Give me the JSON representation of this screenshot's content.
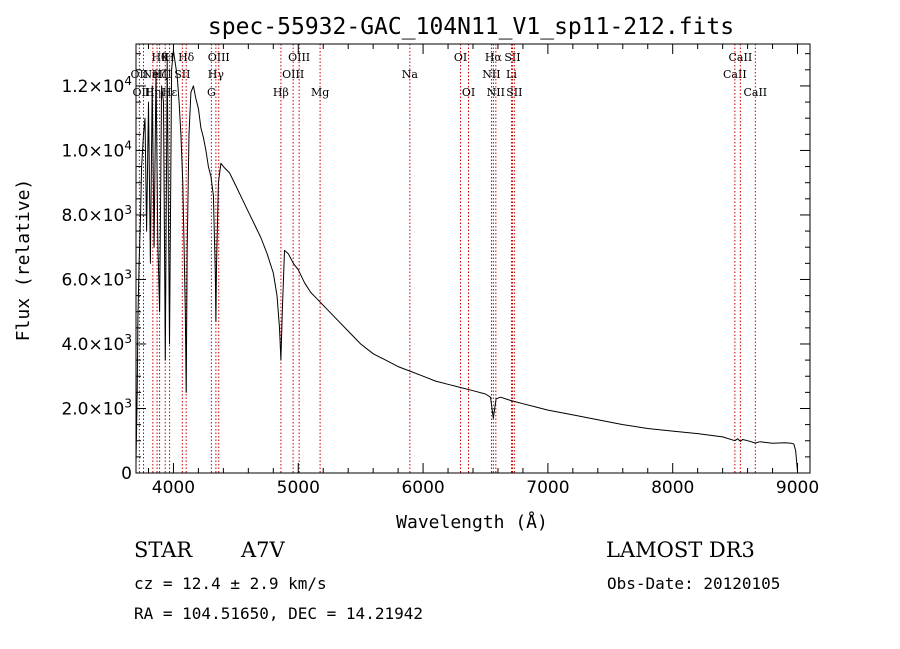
{
  "chart_data": {
    "type": "line",
    "title": "spec-55932-GAC_104N11_V1_sp11-212.fits",
    "xlabel": "Wavelength (Å)",
    "ylabel": "Flux (relative)",
    "xlim": [
      3700,
      9100
    ],
    "ylim": [
      0,
      13300
    ],
    "x_ticks": [
      4000,
      5000,
      6000,
      7000,
      8000,
      9000
    ],
    "x_tick_labels": [
      "4000",
      "5000",
      "6000",
      "7000",
      "8000",
      "9000"
    ],
    "y_ticks": [
      0,
      2000,
      4000,
      6000,
      8000,
      10000,
      12000
    ],
    "y_tick_labels": [
      {
        "mant": "0",
        "exp": ""
      },
      {
        "mant": "2.0×10",
        "exp": "3"
      },
      {
        "mant": "4.0×10",
        "exp": "3"
      },
      {
        "mant": "6.0×10",
        "exp": "3"
      },
      {
        "mant": "8.0×10",
        "exp": "3"
      },
      {
        "mant": "1.0×10",
        "exp": "4"
      },
      {
        "mant": "1.2×10",
        "exp": "4"
      }
    ],
    "series": [
      {
        "name": "spectrum",
        "color": "#000000",
        "x": [
          3700,
          3710,
          3715,
          3725,
          3735,
          3745,
          3760,
          3772,
          3785,
          3800,
          3815,
          3830,
          3845,
          3860,
          3875,
          3889,
          3905,
          3920,
          3935,
          3950,
          3968,
          3985,
          4000,
          4015,
          4030,
          4045,
          4060,
          4075,
          4085,
          4095,
          4102,
          4110,
          4125,
          4140,
          4160,
          4180,
          4200,
          4220,
          4240,
          4260,
          4280,
          4300,
          4320,
          4335,
          4340,
          4345,
          4360,
          4380,
          4400,
          4450,
          4500,
          4550,
          4600,
          4650,
          4700,
          4750,
          4800,
          4830,
          4850,
          4861,
          4872,
          4890,
          4920,
          4960,
          5000,
          5050,
          5100,
          5150,
          5200,
          5300,
          5400,
          5500,
          5600,
          5700,
          5800,
          5900,
          6000,
          6100,
          6200,
          6300,
          6400,
          6500,
          6540,
          6563,
          6585,
          6620,
          6700,
          6800,
          6900,
          7000,
          7200,
          7400,
          7600,
          7800,
          8000,
          8200,
          8400,
          8498,
          8520,
          8542,
          8560,
          8600,
          8662,
          8700,
          8800,
          8900,
          8950,
          8970,
          8985,
          8992,
          9000
        ],
        "y": [
          300,
          2500,
          4800,
          6500,
          7800,
          9500,
          10500,
          11000,
          7500,
          11500,
          6500,
          12000,
          7000,
          12500,
          7200,
          5000,
          12000,
          11500,
          3500,
          12800,
          4000,
          12500,
          13100,
          12700,
          12300,
          11500,
          10500,
          9000,
          7000,
          5000,
          2500,
          7000,
          10500,
          11800,
          12000,
          11600,
          11300,
          10700,
          10400,
          10000,
          9500,
          9200,
          8600,
          6200,
          4700,
          6400,
          9000,
          9600,
          9500,
          9300,
          8900,
          8500,
          8100,
          7700,
          7300,
          6800,
          6200,
          5500,
          4500,
          3500,
          5000,
          6900,
          6800,
          6500,
          6300,
          5900,
          5600,
          5400,
          5200,
          4800,
          4400,
          4000,
          3700,
          3500,
          3300,
          3150,
          3000,
          2850,
          2750,
          2650,
          2550,
          2450,
          2350,
          1700,
          2300,
          2350,
          2250,
          2150,
          2050,
          1950,
          1800,
          1650,
          1500,
          1380,
          1300,
          1220,
          1120,
          1000,
          1060,
          980,
          1040,
          1000,
          930,
          970,
          920,
          940,
          920,
          900,
          700,
          400,
          50
        ]
      }
    ],
    "lines": [
      {
        "wl": 3727,
        "labels": [
          {
            "text": "OII",
            "row": 1
          }
        ],
        "color": "#cc0000"
      },
      {
        "wl": 3760,
        "labels": [
          {
            "text": "OIII",
            "row": 2
          }
        ],
        "color": "#cc0000"
      },
      {
        "wl": 3835,
        "labels": [
          {
            "text": "Hη",
            "row": 2
          }
        ],
        "color": "#cc0000"
      },
      {
        "wl": 3869,
        "labels": [
          {
            "text": "NeIII",
            "row": 1
          }
        ],
        "color": "#cc0000"
      },
      {
        "wl": 3889,
        "labels": [
          {
            "text": "Hζ",
            "row": 1
          },
          {
            "text": "Hθ",
            "row": 0
          }
        ],
        "color": "#cc0000"
      },
      {
        "wl": 3934,
        "labels": [
          {
            "text": "K",
            "row": 0
          }
        ],
        "color": "#cc0000"
      },
      {
        "wl": 3969,
        "labels": [
          {
            "text": "H",
            "row": 0
          },
          {
            "text": "Hε",
            "row": 2
          }
        ],
        "color": "#cc0000"
      },
      {
        "wl": 4071,
        "labels": [
          {
            "text": "SII",
            "row": 1
          }
        ],
        "color": "#cc0000"
      },
      {
        "wl": 4102,
        "labels": [
          {
            "text": "Hδ",
            "row": 0
          }
        ],
        "color": "#cc0000"
      },
      {
        "wl": 4304,
        "labels": [
          {
            "text": "G",
            "row": 2
          }
        ],
        "color": "#cc0000"
      },
      {
        "wl": 4340,
        "labels": [
          {
            "text": "Hγ",
            "row": 1
          }
        ],
        "color": "#cc0000"
      },
      {
        "wl": 4363,
        "labels": [
          {
            "text": "OIII",
            "row": 0
          }
        ],
        "color": "#cc0000"
      },
      {
        "wl": 4861,
        "labels": [
          {
            "text": "Hβ",
            "row": 2
          }
        ],
        "color": "#cc0000"
      },
      {
        "wl": 4959,
        "labels": [
          {
            "text": "OIII",
            "row": 1
          }
        ],
        "color": "#cc0000"
      },
      {
        "wl": 5007,
        "labels": [
          {
            "text": "OIII",
            "row": 0
          }
        ],
        "color": "#cc0000"
      },
      {
        "wl": 5175,
        "labels": [
          {
            "text": "Mg",
            "row": 2
          }
        ],
        "color": "#cc0000"
      },
      {
        "wl": 5894,
        "labels": [
          {
            "text": "Na",
            "row": 1
          }
        ],
        "color": "#cc0000"
      },
      {
        "wl": 6300,
        "labels": [
          {
            "text": "OI",
            "row": 0
          }
        ],
        "color": "#cc0000"
      },
      {
        "wl": 6364,
        "labels": [
          {
            "text": "OI",
            "row": 2
          }
        ],
        "color": "#cc0000"
      },
      {
        "wl": 6548,
        "labels": [
          {
            "text": "NII",
            "row": 1
          }
        ],
        "color": "#cc0000"
      },
      {
        "wl": 6563,
        "labels": [
          {
            "text": "Hα",
            "row": 0
          }
        ],
        "color": "#cc0000"
      },
      {
        "wl": 6583,
        "labels": [
          {
            "text": "NII",
            "row": 2
          }
        ],
        "color": "#cc0000"
      },
      {
        "wl": 6708,
        "labels": [
          {
            "text": "Li",
            "row": 1
          }
        ],
        "color": "#cc0000"
      },
      {
        "wl": 6716,
        "labels": [
          {
            "text": "SII",
            "row": 0
          }
        ],
        "color": "#cc0000"
      },
      {
        "wl": 6731,
        "labels": [
          {
            "text": "SII",
            "row": 2
          }
        ],
        "color": "#cc0000"
      },
      {
        "wl": 8498,
        "labels": [
          {
            "text": "CaII",
            "row": 1
          }
        ],
        "color": "#cc0000"
      },
      {
        "wl": 8542,
        "labels": [
          {
            "text": "CaII",
            "row": 0
          }
        ],
        "color": "#cc0000"
      },
      {
        "wl": 8662,
        "labels": [
          {
            "text": "CaII",
            "row": 2
          }
        ],
        "color": "#cc0000"
      }
    ]
  },
  "info": {
    "object_class": "STAR",
    "subclass": "A7V",
    "survey": "LAMOST DR3",
    "cz": "cz = 12.4 ± 2.9 km/s",
    "obs_date": "Obs-Date: 20120105",
    "coords": "RA = 104.51650, DEC =  14.21942"
  }
}
